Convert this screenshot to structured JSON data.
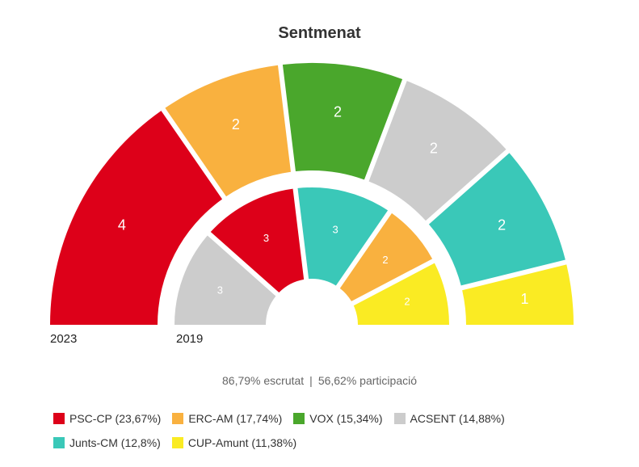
{
  "chart_data": {
    "type": "parliament",
    "title": "Sentmenat",
    "rings": [
      {
        "name": "2023",
        "segments": [
          {
            "party": "PSC-CP",
            "seats": 4
          },
          {
            "party": "ERC-AM",
            "seats": 2
          },
          {
            "party": "VOX",
            "seats": 2
          },
          {
            "party": "ACSENT",
            "seats": 2
          },
          {
            "party": "Junts-CM",
            "seats": 2
          },
          {
            "party": "CUP-Amunt",
            "seats": 1
          }
        ]
      },
      {
        "name": "2019",
        "segments": [
          {
            "party": "ACSENT",
            "seats": 3
          },
          {
            "party": "PSC-CP",
            "seats": 3
          },
          {
            "party": "Junts-CM",
            "seats": 3
          },
          {
            "party": "ERC-AM",
            "seats": 2
          },
          {
            "party": "CUP-Amunt",
            "seats": 2
          }
        ]
      }
    ],
    "legend": [
      {
        "party": "PSC-CP",
        "label": "PSC-CP (23,67%)",
        "color": "#dd0019"
      },
      {
        "party": "ERC-AM",
        "label": "ERC-AM (17,74%)",
        "color": "#f9b13f"
      },
      {
        "party": "VOX",
        "label": "VOX (15,34%)",
        "color": "#4aa72c"
      },
      {
        "party": "ACSENT",
        "label": "ACSENT (14,88%)",
        "color": "#cccccc"
      },
      {
        "party": "Junts-CM",
        "label": "Junts-CM (12,8%)",
        "color": "#3ac8b8"
      },
      {
        "party": "CUP-Amunt",
        "label": "CUP-Amunt (11,38%)",
        "color": "#faeb23"
      }
    ]
  },
  "status": {
    "scrutinized": "86,79% escrutat",
    "separator": "|",
    "participation": "56,62% participació"
  }
}
